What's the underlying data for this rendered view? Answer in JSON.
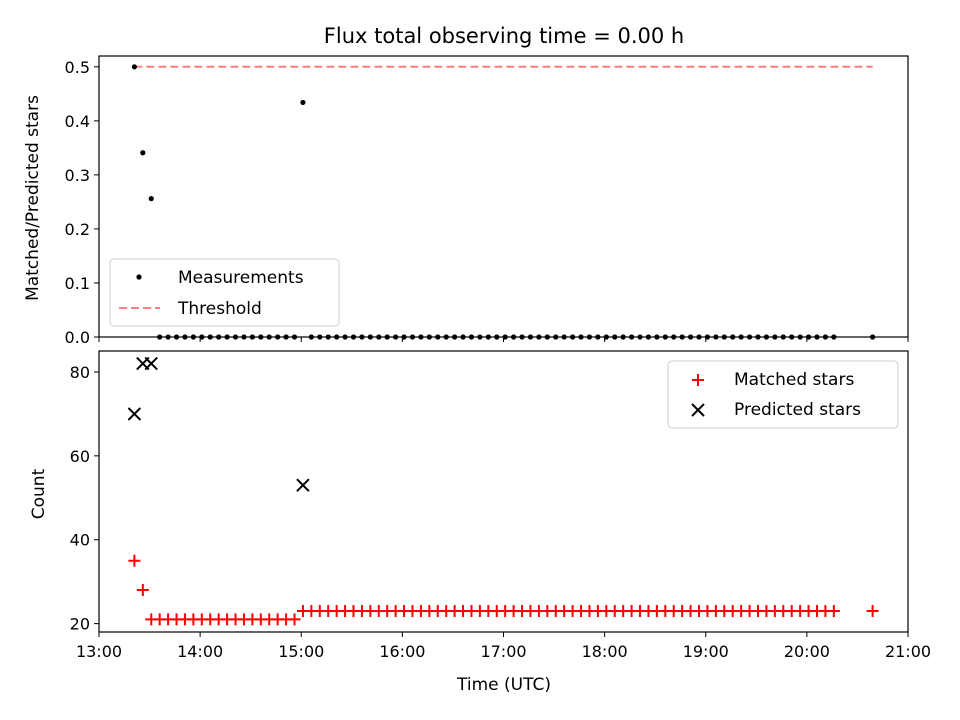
{
  "chart_data": [
    {
      "type": "scatter",
      "title": "Flux total observing time = 0.00 h",
      "xlabel": "",
      "ylabel": "Matched/Predicted stars",
      "xlim": [
        "13:00",
        "21:00"
      ],
      "ylim": [
        0,
        0.52
      ],
      "yticks": [
        0.0,
        0.1,
        0.2,
        0.3,
        0.4,
        0.5
      ],
      "ytick_labels": [
        "0.0",
        "0.1",
        "0.2",
        "0.3",
        "0.4",
        "0.5"
      ],
      "grid": false,
      "legend": {
        "position": "lower-left",
        "entries": [
          {
            "label": "Measurements",
            "marker": "dot",
            "color": "#000000"
          },
          {
            "label": "Threshold",
            "marker": "dashed-line",
            "color": "#ff8080"
          }
        ]
      },
      "series": [
        {
          "name": "Measurements",
          "color": "#000000",
          "points": [
            {
              "x": "13:21",
              "y": 0.5
            },
            {
              "x": "13:26",
              "y": 0.341
            },
            {
              "x": "13:31",
              "y": 0.256
            },
            {
              "x": "15:01",
              "y": 0.434
            }
          ],
          "zero_points": {
            "y": 0,
            "x": [
              "13:36",
              "13:41",
              "13:46",
              "13:51",
              "13:56",
              "14:01",
              "14:06",
              "14:11",
              "14:16",
              "14:21",
              "14:26",
              "14:31",
              "14:36",
              "14:41",
              "14:46",
              "14:51",
              "14:56",
              "15:06",
              "15:11",
              "15:16",
              "15:21",
              "15:26",
              "15:31",
              "15:36",
              "15:41",
              "15:46",
              "15:51",
              "15:56",
              "16:01",
              "16:06",
              "16:11",
              "16:16",
              "16:21",
              "16:26",
              "16:31",
              "16:36",
              "16:41",
              "16:46",
              "16:51",
              "16:56",
              "17:01",
              "17:06",
              "17:11",
              "17:16",
              "17:21",
              "17:26",
              "17:31",
              "17:36",
              "17:41",
              "17:46",
              "17:51",
              "17:56",
              "18:01",
              "18:06",
              "18:11",
              "18:16",
              "18:21",
              "18:26",
              "18:31",
              "18:36",
              "18:41",
              "18:46",
              "18:51",
              "18:56",
              "19:01",
              "19:06",
              "19:11",
              "19:16",
              "19:21",
              "19:26",
              "19:31",
              "19:36",
              "19:41",
              "19:46",
              "19:51",
              "19:56",
              "20:01",
              "20:06",
              "20:11",
              "20:16",
              "20:39"
            ]
          }
        },
        {
          "name": "Threshold",
          "style": "dashed-line",
          "color": "#ff8080",
          "points": [
            {
              "x": "13:21",
              "y": 0.5
            },
            {
              "x": "20:39",
              "y": 0.5
            }
          ]
        }
      ]
    },
    {
      "type": "scatter",
      "title": "",
      "xlabel": "Time (UTC)",
      "ylabel": "Count",
      "xlim": [
        "13:00",
        "21:00"
      ],
      "xticks": [
        "13:00",
        "14:00",
        "15:00",
        "16:00",
        "17:00",
        "18:00",
        "19:00",
        "20:00",
        "21:00"
      ],
      "ylim": [
        18,
        85
      ],
      "yticks": [
        20,
        40,
        60,
        80
      ],
      "ytick_labels": [
        "20",
        "40",
        "60",
        "80"
      ],
      "grid": false,
      "legend": {
        "position": "top-right",
        "entries": [
          {
            "label": "Matched stars",
            "marker": "plus",
            "color": "#ff0000"
          },
          {
            "label": "Predicted stars",
            "marker": "x",
            "color": "#000000"
          }
        ]
      },
      "series": [
        {
          "name": "Matched stars",
          "marker": "plus",
          "color": "#ff0000",
          "points": [
            {
              "x": "13:21",
              "y": 35
            },
            {
              "x": "13:26",
              "y": 28
            }
          ],
          "group_points": [
            {
              "y": 21,
              "x": [
                "13:31",
                "13:36",
                "13:41",
                "13:46",
                "13:51",
                "13:56",
                "14:01",
                "14:06",
                "14:11",
                "14:16",
                "14:21",
                "14:26",
                "14:31",
                "14:36",
                "14:41",
                "14:46",
                "14:51",
                "14:56"
              ]
            },
            {
              "y": 23,
              "x": [
                "15:01",
                "15:06",
                "15:11",
                "15:16",
                "15:21",
                "15:26",
                "15:31",
                "15:36",
                "15:41",
                "15:46",
                "15:51",
                "15:56",
                "16:01",
                "16:06",
                "16:11",
                "16:16",
                "16:21",
                "16:26",
                "16:31",
                "16:36",
                "16:41",
                "16:46",
                "16:51",
                "16:56",
                "17:01",
                "17:06",
                "17:11",
                "17:16",
                "17:21",
                "17:26",
                "17:31",
                "17:36",
                "17:41",
                "17:46",
                "17:51",
                "17:56",
                "18:01",
                "18:06",
                "18:11",
                "18:16",
                "18:21",
                "18:26",
                "18:31",
                "18:36",
                "18:41",
                "18:46",
                "18:51",
                "18:56",
                "19:01",
                "19:06",
                "19:11",
                "19:16",
                "19:21",
                "19:26",
                "19:31",
                "19:36",
                "19:41",
                "19:46",
                "19:51",
                "19:56",
                "20:01",
                "20:06",
                "20:11",
                "20:16",
                "20:39"
              ]
            }
          ]
        },
        {
          "name": "Predicted stars",
          "marker": "x",
          "color": "#000000",
          "points": [
            {
              "x": "13:21",
              "y": 70
            },
            {
              "x": "13:26",
              "y": 82
            },
            {
              "x": "13:31",
              "y": 82
            },
            {
              "x": "15:01",
              "y": 53
            }
          ]
        }
      ]
    }
  ]
}
